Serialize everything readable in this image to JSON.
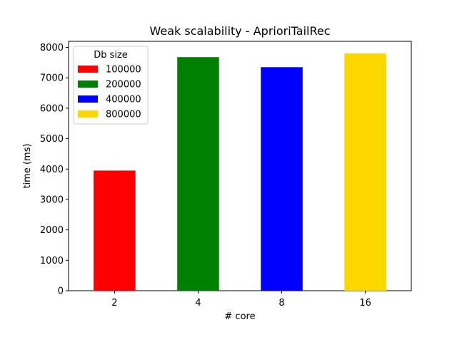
{
  "chart_data": {
    "type": "bar",
    "title": "Weak scalability - AprioriTailRec",
    "xlabel": "# core",
    "ylabel": "time (ms)",
    "categories": [
      "2",
      "4",
      "8",
      "16"
    ],
    "values": [
      3950,
      7680,
      7350,
      7800
    ],
    "colors": [
      "#ff0000",
      "#008000",
      "#0000ff",
      "#ffd700"
    ],
    "ylim": [
      0,
      8200
    ],
    "yticks": [
      0,
      1000,
      2000,
      3000,
      4000,
      5000,
      6000,
      7000,
      8000
    ],
    "grid": false,
    "legend": {
      "title": "Db size",
      "placement": "top-left",
      "entries": [
        "100000",
        "200000",
        "400000",
        "800000"
      ]
    }
  }
}
